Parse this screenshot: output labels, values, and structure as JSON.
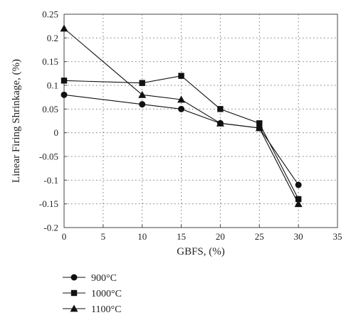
{
  "chart_data": {
    "type": "line",
    "title": "",
    "xlabel": "GBFS, (%)",
    "ylabel": "Linear Firing Shrinkage, (%)",
    "xlim": [
      0,
      35
    ],
    "ylim": [
      -0.2,
      0.25
    ],
    "xticks": [
      0,
      5,
      10,
      15,
      20,
      25,
      30,
      35
    ],
    "yticks": [
      -0.2,
      -0.15,
      -0.1,
      -0.05,
      0,
      0.05,
      0.1,
      0.15,
      0.2,
      0.25
    ],
    "xtick_labels": [
      "0",
      "5",
      "10",
      "15",
      "20",
      "25",
      "30",
      "35"
    ],
    "ytick_labels": [
      "-0.2",
      "-0.15",
      "-0.1",
      "-0.05",
      "0",
      "0.05",
      "0.1",
      "0.15",
      "0.2",
      "0.25"
    ],
    "grid": true,
    "legend_position": "bottom-left, below plot",
    "series": [
      {
        "name": "900°C",
        "marker": "circle",
        "color": "#111111",
        "x": [
          0,
          10,
          15,
          20,
          25,
          30
        ],
        "y": [
          0.08,
          0.06,
          0.05,
          0.02,
          0.01,
          -0.11
        ]
      },
      {
        "name": "1000°C",
        "marker": "square",
        "color": "#111111",
        "x": [
          0,
          10,
          15,
          20,
          25,
          30
        ],
        "y": [
          0.11,
          0.105,
          0.12,
          0.05,
          0.02,
          -0.14
        ]
      },
      {
        "name": "1100°C",
        "marker": "triangle",
        "color": "#111111",
        "x": [
          0,
          10,
          15,
          20,
          25,
          30
        ],
        "y": [
          0.22,
          0.08,
          0.07,
          0.02,
          0.01,
          -0.15
        ]
      }
    ]
  }
}
